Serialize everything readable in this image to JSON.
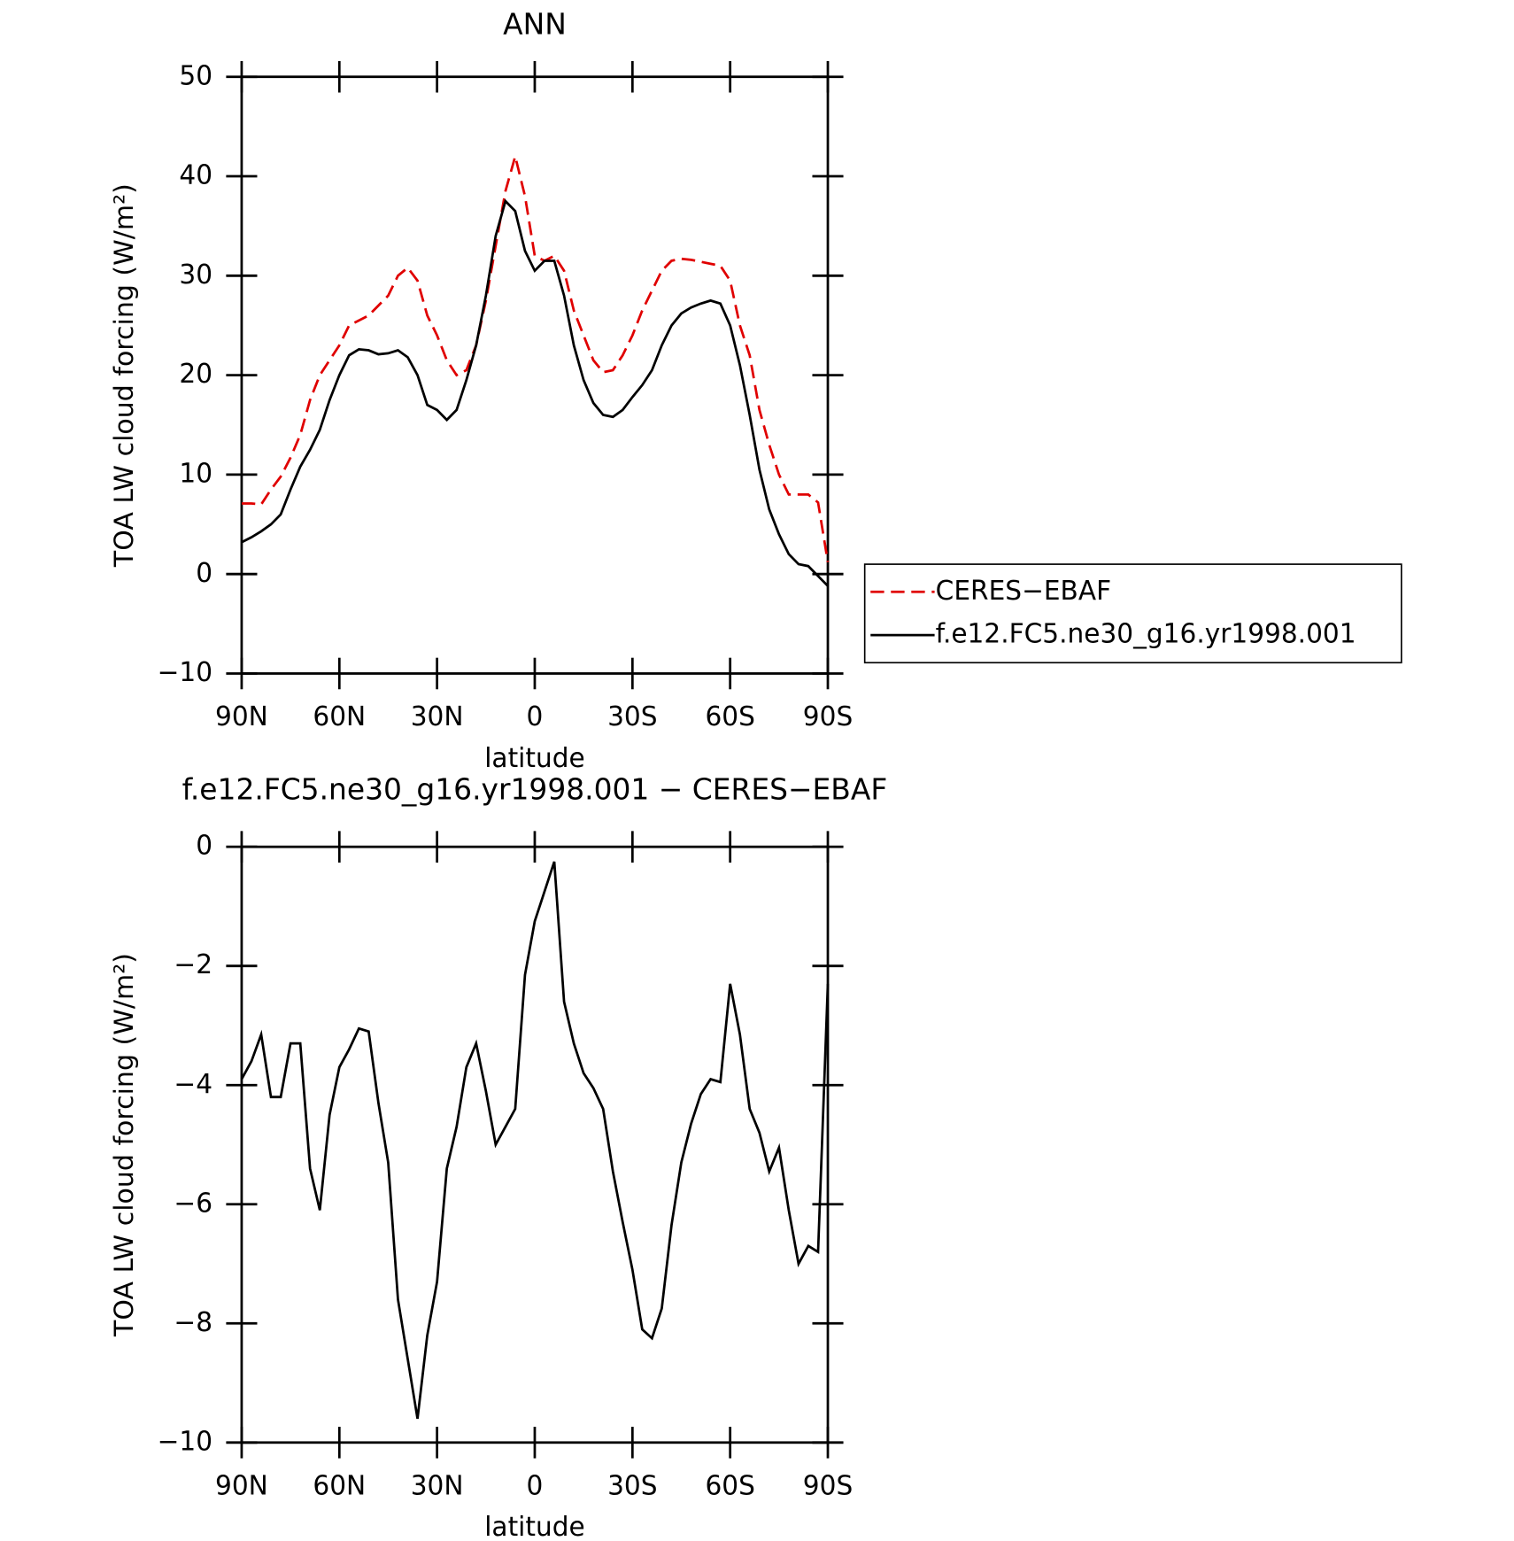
{
  "chart_data": [
    {
      "type": "line",
      "title": "ANN",
      "xlabel": "latitude",
      "ylabel": "TOA LW cloud forcing (W/m²)",
      "x": [
        90,
        87,
        84,
        81,
        78,
        75,
        72,
        69,
        66,
        63,
        60,
        57,
        54,
        51,
        48,
        45,
        42,
        39,
        36,
        33,
        30,
        27,
        24,
        21,
        18,
        15,
        12,
        9,
        6,
        3,
        0,
        -3,
        -6,
        -9,
        -12,
        -15,
        -18,
        -21,
        -24,
        -27,
        -30,
        -33,
        -36,
        -39,
        -42,
        -45,
        -48,
        -51,
        -54,
        -57,
        -60,
        -63,
        -66,
        -69,
        -72,
        -75,
        -78,
        -81,
        -84,
        -87,
        -90
      ],
      "xlim": [
        90,
        -90
      ],
      "xticks": [
        {
          "value": 90,
          "label": "90N"
        },
        {
          "value": 60,
          "label": "60N"
        },
        {
          "value": 30,
          "label": "30N"
        },
        0,
        {
          "value": -30,
          "label": "30S"
        },
        {
          "value": -60,
          "label": "60S"
        },
        {
          "value": -90,
          "label": "90S"
        }
      ],
      "ylim": [
        -10,
        50
      ],
      "yticks": [
        {
          "value": -10,
          "label": "−10"
        },
        0,
        10,
        20,
        30,
        40,
        50
      ],
      "legend": "right",
      "series": [
        {
          "name": "CERES−EBAF",
          "color": "#e00000",
          "dash": "dashed",
          "values": [
            7.1,
            7.1,
            7.0,
            8.5,
            9.8,
            11.7,
            14,
            17.5,
            20,
            21.5,
            23,
            25,
            25.5,
            26,
            27,
            28,
            30,
            30.8,
            29.5,
            26,
            24,
            21.5,
            20,
            20.5,
            23,
            27.5,
            33,
            38.5,
            42,
            38,
            32,
            31.5,
            32,
            30.5,
            26.5,
            24,
            21.5,
            20.3,
            20.5,
            22,
            24,
            26.5,
            28.5,
            30.5,
            31.5,
            31.7,
            31.6,
            31.4,
            31.2,
            31,
            29.5,
            25,
            22,
            16.5,
            13,
            10,
            8,
            8,
            8,
            7.2,
            1.2
          ]
        },
        {
          "name": "f.e12.FC5.ne30_g16.yr1998.001",
          "color": "#000000",
          "dash": "solid",
          "values": [
            3.2,
            3.7,
            4.3,
            5.0,
            6.0,
            8.5,
            10.8,
            12.5,
            14.5,
            17.5,
            20,
            22,
            22.6,
            22.5,
            22.1,
            22.2,
            22.5,
            21.8,
            20,
            17,
            16.5,
            15.5,
            16.5,
            19.5,
            23,
            28,
            34,
            37.5,
            36.5,
            32.5,
            30.5,
            31.5,
            31.5,
            28,
            23,
            19.5,
            17.2,
            16,
            15.8,
            16.5,
            17.8,
            19,
            20.5,
            23,
            25,
            26.2,
            26.8,
            27.2,
            27.5,
            27.2,
            25,
            21,
            16,
            10.5,
            6.5,
            4,
            2,
            1,
            0.8,
            -0.2,
            -1.2
          ]
        }
      ]
    },
    {
      "type": "line",
      "title": "f.e12.FC5.ne30_g16.yr1998.001 − CERES−EBAF",
      "xlabel": "latitude",
      "ylabel": "TOA LW cloud forcing (W/m²)",
      "x": [
        90,
        87,
        84,
        81,
        78,
        75,
        72,
        69,
        66,
        63,
        60,
        57,
        54,
        51,
        48,
        45,
        42,
        39,
        36,
        33,
        30,
        27,
        24,
        21,
        18,
        15,
        12,
        9,
        6,
        3,
        0,
        -3,
        -6,
        -9,
        -12,
        -15,
        -18,
        -21,
        -24,
        -27,
        -30,
        -33,
        -36,
        -39,
        -42,
        -45,
        -48,
        -51,
        -54,
        -57,
        -60,
        -63,
        -66,
        -69,
        -72,
        -75,
        -78,
        -81,
        -84,
        -87,
        -90
      ],
      "xlim": [
        90,
        -90
      ],
      "xticks": [
        {
          "value": 90,
          "label": "90N"
        },
        {
          "value": 60,
          "label": "60N"
        },
        {
          "value": 30,
          "label": "30N"
        },
        0,
        {
          "value": -30,
          "label": "30S"
        },
        {
          "value": -60,
          "label": "60S"
        },
        {
          "value": -90,
          "label": "90S"
        }
      ],
      "ylim": [
        -10,
        0
      ],
      "yticks": [
        {
          "value": -10,
          "label": "−10"
        },
        {
          "value": -8,
          "label": "−8"
        },
        {
          "value": -6,
          "label": "−6"
        },
        {
          "value": -4,
          "label": "−4"
        },
        {
          "value": -2,
          "label": "−2"
        },
        0
      ],
      "series": [
        {
          "color": "#000000",
          "dash": "solid",
          "values": [
            -3.9,
            -3.6,
            -3.15,
            -4.2,
            -4.2,
            -3.3,
            -3.3,
            -5.4,
            -6.1,
            -4.5,
            -3.7,
            -3.4,
            -3.05,
            -3.1,
            -4.3,
            -5.3,
            -7.6,
            -8.6,
            -9.6,
            -8.2,
            -7.3,
            -5.4,
            -4.7,
            -3.7,
            -3.3,
            -4.1,
            -5.0,
            -4.7,
            -4.4,
            -2.15,
            -1.25,
            -0.75,
            -0.25,
            -2.6,
            -3.3,
            -3.8,
            -4.05,
            -4.4,
            -5.45,
            -6.3,
            -7.1,
            -8.1,
            -8.25,
            -7.75,
            -6.35,
            -5.3,
            -4.65,
            -4.15,
            -3.9,
            -3.95,
            -2.3,
            -3.15,
            -4.4,
            -4.8,
            -5.45,
            -5.05,
            -6.1,
            -7.0,
            -6.7,
            -6.8,
            -2.3
          ]
        }
      ]
    }
  ]
}
